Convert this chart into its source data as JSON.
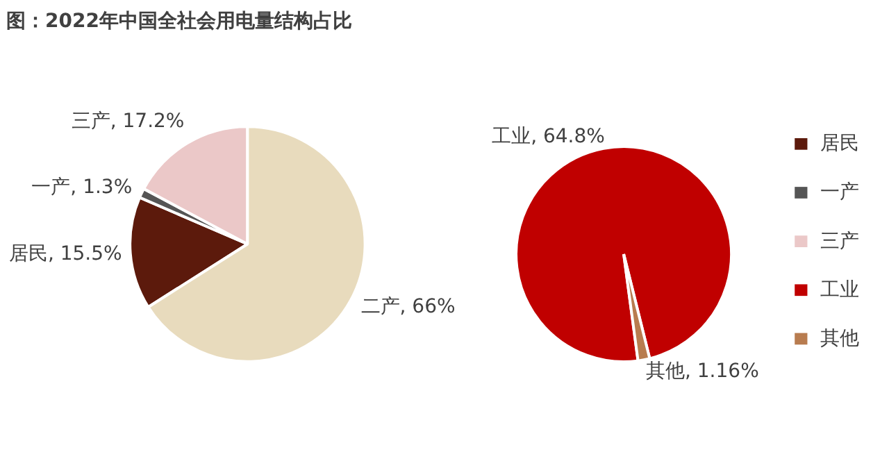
{
  "chart_data": [
    {
      "type": "pie",
      "title": "图：2022年中国全社会用电量结构占比",
      "categories": [
        "居民",
        "一产",
        "三产",
        "二产"
      ],
      "values": [
        15.5,
        1.3,
        17.2,
        66
      ],
      "colors": [
        "#5c1a0c",
        "#555555",
        "#ebc8c8",
        "#e8dbbd"
      ],
      "value_labels": [
        ", 15.5%",
        ", 1.3%",
        ", 17.2%",
        ", 66%"
      ],
      "legend": "right"
    },
    {
      "type": "pie",
      "categories": [
        "工业",
        "其他"
      ],
      "values": [
        64.8,
        1.16
      ],
      "colors": [
        "#c00000",
        "#b87c4f"
      ],
      "value_labels": [
        ", 64.8%",
        ", 1.16%"
      ],
      "legend": "right"
    }
  ]
}
